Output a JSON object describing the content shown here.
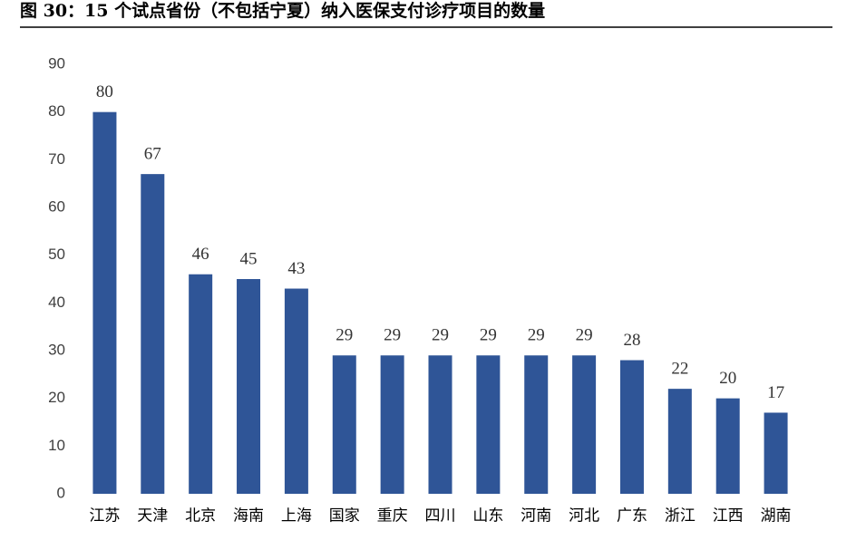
{
  "chart_data": {
    "type": "bar",
    "title": "图 30：15 个试点省份（不包括宁夏）纳入医保支付诊疗项目的数量",
    "categories": [
      "江苏",
      "天津",
      "北京",
      "海南",
      "上海",
      "国家",
      "重庆",
      "四川",
      "山东",
      "河南",
      "河北",
      "广东",
      "浙江",
      "江西",
      "湖南"
    ],
    "values": [
      80,
      67,
      46,
      45,
      43,
      29,
      29,
      29,
      29,
      29,
      29,
      28,
      22,
      20,
      17
    ],
    "color": "#2f5597",
    "ylim": [
      0,
      90
    ],
    "yticks": [
      0,
      10,
      20,
      30,
      40,
      50,
      60,
      70,
      80,
      90
    ]
  }
}
